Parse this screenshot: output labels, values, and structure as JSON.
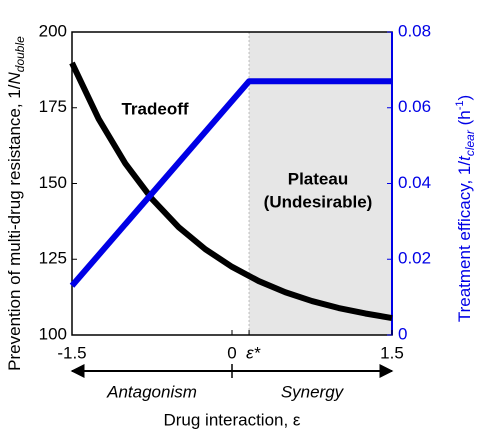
{
  "chart_data": {
    "type": "line",
    "y_label_parts": [
      "Prevention of multi-drug resistance, 1/",
      "N",
      "double"
    ],
    "y2_label_parts": [
      "Treatment efficacy, 1/",
      "t",
      "clear",
      " (h",
      "-1",
      ")"
    ],
    "x_label": "Drug interaction, ε",
    "annotations": [
      "Tradeoff",
      "Plateau",
      "(Undesirable)"
    ],
    "regions": [
      "Antagonism",
      "Synergy"
    ],
    "shade_xlim": [
      0.16,
      1.5
    ],
    "xlim": [
      -1.5,
      1.5
    ],
    "xticks": [
      -1.5,
      0,
      {
        "value": 0.16,
        "label": "ε*"
      },
      1.5
    ],
    "ylim": [
      100,
      200
    ],
    "yticks": [
      100,
      125,
      150,
      175,
      200
    ],
    "y2lim": [
      0,
      0.08
    ],
    "y2ticks": [
      0,
      0.02,
      0.04,
      0.06,
      0.08
    ],
    "y2_color": "#0000e6",
    "series": [
      {
        "color": "#000000",
        "axis": "y",
        "x": [
          -1.5,
          -1.25,
          -1.0,
          -0.75,
          -0.5,
          -0.25,
          0,
          0.25,
          0.5,
          0.75,
          1.0,
          1.25,
          1.5
        ],
        "values": [
          189.8,
          171.3,
          156.6,
          144.9,
          135.6,
          128.3,
          122.5,
          117.8,
          114.1,
          111.2,
          108.9,
          107.1,
          105.6
        ]
      },
      {
        "color": "#0000e6",
        "axis": "y2",
        "x": [
          -1.5,
          0.16,
          1.5
        ],
        "values": [
          0.013,
          0.067,
          0.067
        ]
      }
    ]
  }
}
